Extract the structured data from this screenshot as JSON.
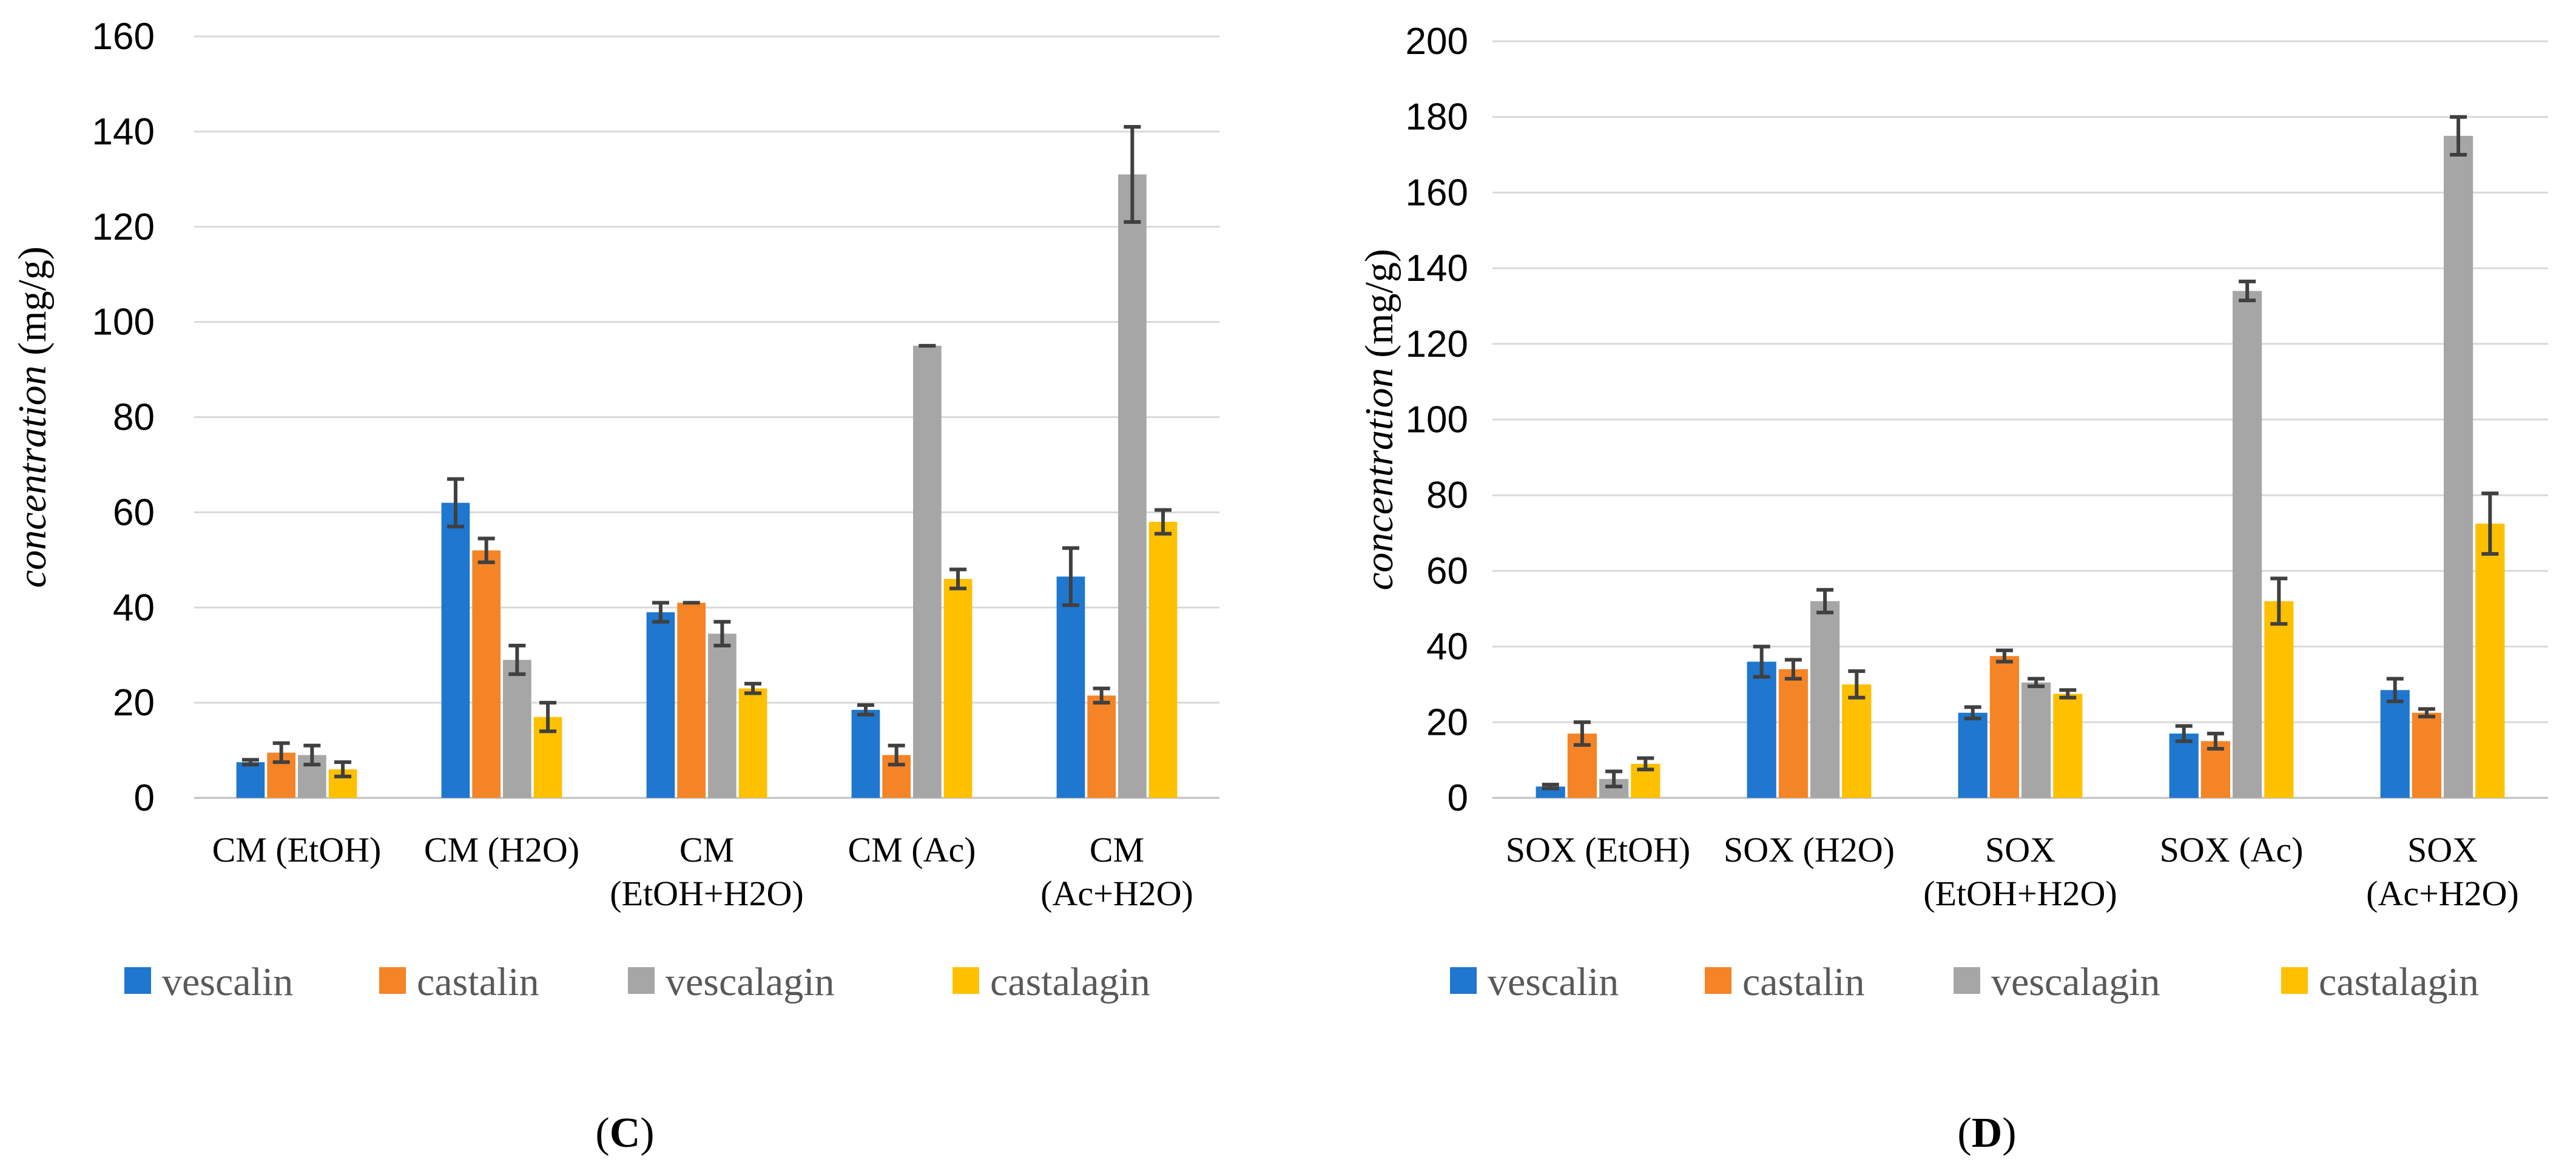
{
  "colors": {
    "vescalin": "#1f77d0",
    "castalin": "#f58426",
    "vescalagin": "#a6a6a6",
    "castalagin": "#ffc000"
  },
  "chart_data": [
    {
      "type": "bar",
      "panel_label": "C",
      "ylabel_italic": "concentration",
      "ylabel_unit": " (mg/g)",
      "ylim": [
        0,
        160
      ],
      "yticks": [
        0,
        20,
        40,
        60,
        80,
        100,
        120,
        140,
        160
      ],
      "grid": true,
      "legend_position": "bottom",
      "categories": [
        [
          "CM (EtOH)"
        ],
        [
          "CM (H2O)"
        ],
        [
          "CM",
          "(EtOH+H2O)"
        ],
        [
          "CM (Ac)"
        ],
        [
          "CM",
          "(Ac+H2O)"
        ]
      ],
      "series": [
        {
          "name": "vescalin",
          "values": [
            7.5,
            62,
            39,
            18.5,
            46.5
          ],
          "errors": [
            0.5,
            5,
            2,
            1,
            6
          ]
        },
        {
          "name": "castalin",
          "values": [
            9.5,
            52,
            41,
            9,
            21.5
          ],
          "errors": [
            2,
            2.5,
            0,
            2,
            1.5
          ]
        },
        {
          "name": "vescalagin",
          "values": [
            9,
            29,
            34.5,
            95,
            131
          ],
          "errors": [
            2,
            3,
            2.5,
            0,
            10
          ]
        },
        {
          "name": "castalagin",
          "values": [
            6,
            17,
            23,
            46,
            58
          ],
          "errors": [
            1.5,
            3,
            1,
            2,
            2.5
          ]
        }
      ]
    },
    {
      "type": "bar",
      "panel_label": "D",
      "ylabel_italic": "concentration",
      "ylabel_unit": " (mg/g)",
      "ylim": [
        0,
        200
      ],
      "yticks": [
        0,
        20,
        40,
        60,
        80,
        100,
        120,
        140,
        160,
        180,
        200
      ],
      "grid": true,
      "legend_position": "bottom",
      "categories": [
        [
          "SOX (EtOH)"
        ],
        [
          "SOX (H2O)"
        ],
        [
          "SOX",
          "(EtOH+H2O)"
        ],
        [
          "SOX (Ac)"
        ],
        [
          "SOX",
          "(Ac+H2O)"
        ]
      ],
      "series": [
        {
          "name": "vescalin",
          "values": [
            3,
            36,
            22.5,
            17,
            28.5
          ],
          "errors": [
            0.5,
            4,
            1.5,
            2,
            3
          ]
        },
        {
          "name": "castalin",
          "values": [
            17,
            34,
            37.5,
            15,
            22.5
          ],
          "errors": [
            3,
            2.5,
            1.5,
            2,
            1
          ]
        },
        {
          "name": "vescalagin",
          "values": [
            5,
            52,
            30.5,
            134,
            175
          ],
          "errors": [
            2,
            3,
            1,
            2.5,
            5
          ]
        },
        {
          "name": "castalagin",
          "values": [
            9,
            30,
            27.5,
            52,
            72.5
          ],
          "errors": [
            1.5,
            3.5,
            1,
            6,
            8
          ]
        }
      ]
    }
  ]
}
